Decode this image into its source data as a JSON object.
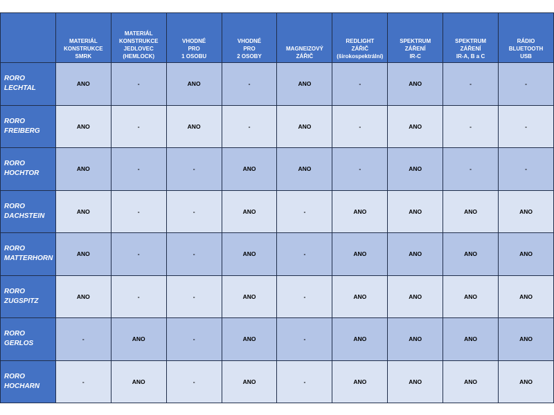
{
  "table": {
    "columns": [
      [
        "MATERIÁL",
        "KONSTRUKCE",
        "SMRK"
      ],
      [
        "MATERIÁL",
        "KONSTRUKCE",
        "JEDLOVEC",
        "(HEMLOCK)"
      ],
      [
        "VHODNÉ",
        "PRO",
        "1 OSOBU"
      ],
      [
        "VHODNÉ",
        "PRO",
        "2 OSOBY"
      ],
      [
        "MAGNEIZOVÝ",
        "ZÁŘIČ"
      ],
      [
        "REDLIGHT",
        "ZÁŘIČ",
        "(širokospektrální)"
      ],
      [
        "SPEKTRUM",
        "ZÁŘENÍ",
        "IR-C"
      ],
      [
        "SPEKTRUM",
        "ZÁŘENÍ",
        "IR-A, B a C"
      ],
      [
        "RÁDIO",
        "BLUETOOTH",
        "USB"
      ]
    ],
    "rows": [
      {
        "name": [
          "RORO",
          "LECHTAL"
        ],
        "values": [
          "ANO",
          "-",
          "ANO",
          "-",
          "ANO",
          "-",
          "ANO",
          "-",
          "-"
        ]
      },
      {
        "name": [
          "RORO",
          "FREIBERG"
        ],
        "values": [
          "ANO",
          "-",
          "ANO",
          "-",
          "ANO",
          "-",
          "ANO",
          "-",
          "-"
        ]
      },
      {
        "name": [
          "RORO",
          "HOCHTOR"
        ],
        "values": [
          "ANO",
          "-",
          "-",
          "ANO",
          "ANO",
          "-",
          "ANO",
          "-",
          "-"
        ]
      },
      {
        "name": [
          "RORO",
          "DACHSTEIN"
        ],
        "values": [
          "ANO",
          "-",
          "-",
          "ANO",
          "-",
          "ANO",
          "ANO",
          "ANO",
          "ANO"
        ]
      },
      {
        "name": [
          "RORO",
          "MATTERHORN"
        ],
        "values": [
          "ANO",
          "-",
          "-",
          "ANO",
          "-",
          "ANO",
          "ANO",
          "ANO",
          "ANO"
        ]
      },
      {
        "name": [
          "RORO",
          "ZUGSPITZ"
        ],
        "values": [
          "ANO",
          "-",
          "-",
          "ANO",
          "-",
          "ANO",
          "ANO",
          "ANO",
          "ANO"
        ]
      },
      {
        "name": [
          "RORO",
          "GERLOS"
        ],
        "values": [
          "-",
          "ANO",
          "-",
          "ANO",
          "-",
          "ANO",
          "ANO",
          "ANO",
          "ANO"
        ]
      },
      {
        "name": [
          "RORO",
          "HOCHARN"
        ],
        "values": [
          "-",
          "ANO",
          "-",
          "ANO",
          "-",
          "ANO",
          "ANO",
          "ANO",
          "ANO"
        ]
      }
    ]
  },
  "colors": {
    "header": "#4472c4",
    "row_dark": "#b4c5e7",
    "row_light": "#dae3f3"
  }
}
